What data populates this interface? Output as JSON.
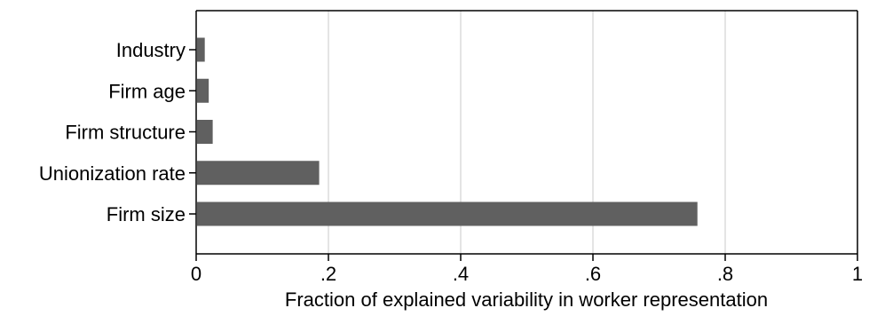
{
  "chart_data": {
    "type": "bar",
    "orientation": "horizontal",
    "categories": [
      "Industry",
      "Firm age",
      "Firm structure",
      "Unionization rate",
      "Firm size"
    ],
    "values": [
      0.013,
      0.019,
      0.025,
      0.186,
      0.758
    ],
    "xlabel": "Fraction of explained variability in worker representation",
    "ylabel": "",
    "xlim": [
      0,
      1
    ],
    "xticks": [
      0,
      0.2,
      0.4,
      0.6,
      0.8,
      1
    ],
    "xtick_labels": [
      "0",
      ".2",
      ".4",
      ".6",
      ".8",
      "1"
    ],
    "grid": "vertical",
    "bar_color": "#606060",
    "grid_color": "#dcdcdc"
  }
}
